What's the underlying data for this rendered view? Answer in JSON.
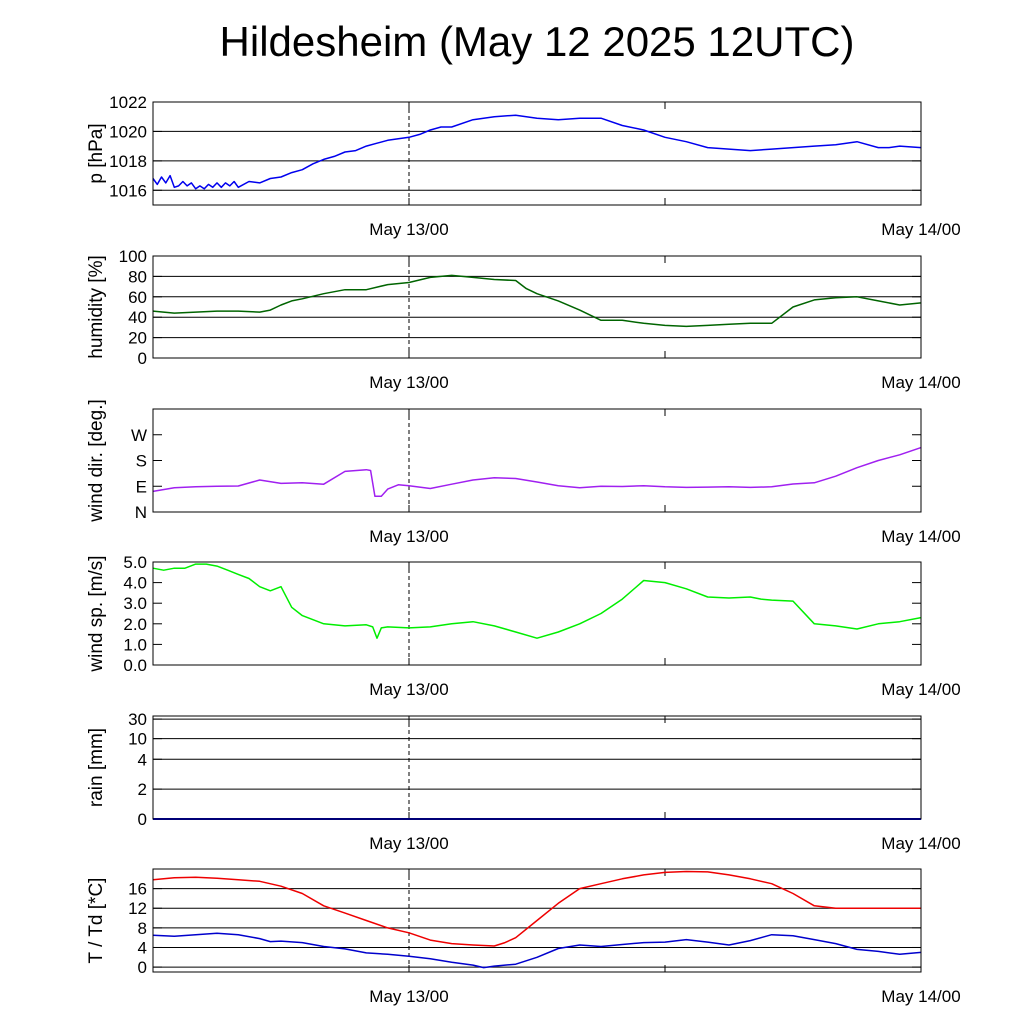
{
  "title": "Hildesheim (May 12 2025 12UTC)",
  "time_axis": {
    "start_hours_after_title": 0,
    "end_hours_after_title": 36,
    "tick_labels": [
      {
        "label": "May 13/00",
        "hour": 12
      },
      {
        "label": "May 14/00",
        "hour": 36
      }
    ],
    "dashed_marker_hour": 12,
    "minor_tick_hour": 24
  },
  "chart_data": [
    {
      "type": "line",
      "ylabel": "p [hPa]",
      "ylim": [
        1015,
        1022
      ],
      "yticks": [
        1016,
        1018,
        1020,
        1022
      ],
      "ytick_labels": [
        "1016",
        "1018",
        "1020",
        "1022"
      ],
      "grid": true,
      "series": [
        {
          "color": "#0000ee",
          "x": [
            0,
            0.2,
            0.4,
            0.6,
            0.8,
            1,
            1.2,
            1.4,
            1.6,
            1.8,
            2,
            2.2,
            2.4,
            2.6,
            2.8,
            3,
            3.2,
            3.4,
            3.6,
            3.8,
            4,
            4.5,
            5,
            5.5,
            6,
            6.5,
            7,
            7.5,
            8,
            8.5,
            9,
            9.5,
            10,
            10.5,
            11,
            11.5,
            12,
            12.5,
            13,
            13.5,
            14,
            15,
            16,
            17,
            18,
            19,
            20,
            21,
            22,
            23,
            24,
            25,
            26,
            27,
            28,
            29,
            30,
            31,
            32,
            33,
            34,
            34.5,
            35,
            36
          ],
          "y": [
            1016.8,
            1016.4,
            1016.9,
            1016.5,
            1017.0,
            1016.2,
            1016.3,
            1016.6,
            1016.3,
            1016.5,
            1016.1,
            1016.3,
            1016.1,
            1016.4,
            1016.2,
            1016.5,
            1016.2,
            1016.5,
            1016.3,
            1016.6,
            1016.2,
            1016.6,
            1016.5,
            1016.8,
            1016.9,
            1017.2,
            1017.4,
            1017.8,
            1018.1,
            1018.3,
            1018.6,
            1018.7,
            1019.0,
            1019.2,
            1019.4,
            1019.5,
            1019.6,
            1019.8,
            1020.1,
            1020.3,
            1020.3,
            1020.8,
            1021.0,
            1021.1,
            1020.9,
            1020.8,
            1020.9,
            1020.9,
            1020.4,
            1020.1,
            1019.6,
            1019.3,
            1018.9,
            1018.8,
            1018.7,
            1018.8,
            1018.9,
            1019.0,
            1019.1,
            1019.3,
            1018.9,
            1018.9,
            1019.0,
            1018.9
          ]
        }
      ]
    },
    {
      "type": "line",
      "ylabel": "humidity [%]",
      "ylim": [
        0,
        100
      ],
      "yticks": [
        0,
        20,
        40,
        60,
        80,
        100
      ],
      "ytick_labels": [
        "0",
        "20",
        "40",
        "60",
        "80",
        "100"
      ],
      "grid": true,
      "series": [
        {
          "color": "#006400",
          "x": [
            0,
            1,
            2,
            3,
            4,
            5,
            5.5,
            6,
            6.5,
            7,
            8,
            9,
            10,
            11,
            12,
            13,
            14,
            15,
            16,
            17,
            17.5,
            18,
            19,
            20,
            21,
            22,
            23,
            24,
            25,
            26,
            27,
            28,
            29,
            30,
            31,
            32,
            33,
            34,
            35,
            36
          ],
          "y": [
            46,
            44,
            45,
            46,
            46,
            45,
            47,
            52,
            56,
            58,
            63,
            67,
            67,
            72,
            74,
            79,
            81,
            79,
            77,
            76,
            68,
            63,
            56,
            47,
            37,
            37,
            34,
            32,
            31,
            32,
            33,
            34,
            34,
            50,
            57,
            59,
            60,
            56,
            52,
            54
          ]
        }
      ]
    },
    {
      "type": "line",
      "ylabel": "wind dir. [deg.]",
      "ylim": [
        0,
        360
      ],
      "yticks": [
        0,
        90,
        180,
        270
      ],
      "ytick_labels": [
        "N",
        "E",
        "S",
        "W"
      ],
      "grid": false,
      "series": [
        {
          "color": "#a020f0",
          "x": [
            0,
            1,
            2,
            3,
            4,
            5,
            6,
            7,
            8,
            9,
            10,
            10.2,
            10.4,
            10.7,
            11,
            11.5,
            12,
            13,
            14,
            15,
            16,
            17,
            18,
            19,
            20,
            21,
            22,
            23,
            24,
            25,
            26,
            27,
            28,
            29,
            30,
            31,
            32,
            33,
            34,
            35,
            36
          ],
          "y": [
            72,
            85,
            88,
            90,
            91,
            112,
            100,
            102,
            97,
            142,
            148,
            145,
            55,
            55,
            80,
            95,
            92,
            82,
            97,
            112,
            120,
            117,
            105,
            92,
            85,
            90,
            89,
            92,
            88,
            86,
            87,
            88,
            86,
            88,
            98,
            102,
            125,
            155,
            180,
            200,
            225
          ]
        }
      ]
    },
    {
      "type": "line",
      "ylabel": "wind sp. [m/s]",
      "ylim": [
        0,
        5
      ],
      "yticks": [
        0,
        1,
        2,
        3,
        4,
        5
      ],
      "ytick_labels": [
        "0.0",
        "1.0",
        "2.0",
        "3.0",
        "4.0",
        "5.0"
      ],
      "grid": false,
      "series": [
        {
          "color": "#00ee00",
          "x": [
            0,
            0.5,
            1,
            1.5,
            2,
            2.5,
            3,
            3.5,
            4,
            4.5,
            5,
            5.5,
            6,
            6.5,
            7,
            8,
            9,
            10,
            10.3,
            10.5,
            10.7,
            11,
            12,
            13,
            14,
            15,
            16,
            17,
            18,
            19,
            20,
            21,
            22,
            23,
            24,
            25,
            26,
            27,
            28,
            28.5,
            29,
            30,
            31,
            32,
            33,
            34,
            35,
            36
          ],
          "y": [
            4.7,
            4.6,
            4.7,
            4.7,
            4.9,
            4.9,
            4.8,
            4.6,
            4.4,
            4.2,
            3.8,
            3.6,
            3.8,
            2.8,
            2.4,
            2.0,
            1.9,
            1.95,
            1.85,
            1.3,
            1.8,
            1.85,
            1.8,
            1.85,
            2.0,
            2.1,
            1.9,
            1.6,
            1.3,
            1.6,
            2.0,
            2.5,
            3.2,
            4.1,
            4.0,
            3.7,
            3.3,
            3.25,
            3.3,
            3.2,
            3.15,
            3.1,
            2.0,
            1.9,
            1.75,
            2.0,
            2.1,
            2.3
          ]
        }
      ]
    },
    {
      "type": "line",
      "ylabel": "rain [mm]",
      "ylim": [
        0,
        30
      ],
      "yticks": [
        0,
        2,
        4,
        10,
        30
      ],
      "ytick_labels": [
        "0",
        "2",
        "4",
        "10",
        "30"
      ],
      "grid": true,
      "series": [
        {
          "color": "#0000ee",
          "x": [
            0,
            36
          ],
          "y": [
            0,
            0
          ]
        }
      ]
    },
    {
      "type": "line",
      "ylabel": "T / Td [*C]",
      "ylim": [
        -1,
        20
      ],
      "yticks": [
        0,
        4,
        8,
        12,
        16
      ],
      "ytick_labels": [
        "0",
        "4",
        "8",
        "12",
        "16"
      ],
      "grid": true,
      "series": [
        {
          "color": "#ee0000",
          "x": [
            0,
            1,
            2,
            3,
            4,
            5,
            6,
            7,
            8,
            9,
            10,
            11,
            12,
            13,
            14,
            15,
            16,
            16.5,
            17,
            18,
            19,
            20,
            21,
            22,
            23,
            24,
            25,
            26,
            27,
            28,
            29,
            30,
            31,
            32,
            33,
            34,
            35,
            36
          ],
          "y": [
            17.8,
            18.2,
            18.3,
            18.1,
            17.8,
            17.5,
            16.5,
            15.0,
            12.5,
            11.0,
            9.5,
            8.0,
            7.0,
            5.5,
            4.8,
            4.5,
            4.3,
            5.0,
            6.0,
            9.5,
            13.0,
            16.0,
            17.0,
            18.0,
            18.8,
            19.3,
            19.5,
            19.4,
            18.8,
            18.0,
            17.0,
            15.0,
            12.5,
            12.0,
            12.0,
            12.0,
            12.0,
            12.0
          ]
        },
        {
          "color": "#0000cc",
          "x": [
            0,
            1,
            2,
            3,
            4,
            5,
            5.5,
            6,
            7,
            8,
            9,
            10,
            11,
            12,
            13,
            14,
            15,
            15.5,
            16,
            17,
            18,
            19,
            20,
            21,
            22,
            23,
            24,
            25,
            26,
            27,
            28,
            29,
            30,
            31,
            32,
            33,
            34,
            35,
            36
          ],
          "y": [
            6.5,
            6.3,
            6.6,
            6.9,
            6.6,
            5.8,
            5.2,
            5.3,
            5.0,
            4.2,
            3.7,
            2.9,
            2.6,
            2.2,
            1.7,
            1.0,
            0.4,
            -0.1,
            0.2,
            0.6,
            2.0,
            3.8,
            4.5,
            4.2,
            4.6,
            5.0,
            5.1,
            5.6,
            5.1,
            4.5,
            5.4,
            6.6,
            6.4,
            5.6,
            4.8,
            3.6,
            3.2,
            2.6,
            3.0
          ]
        }
      ]
    }
  ]
}
